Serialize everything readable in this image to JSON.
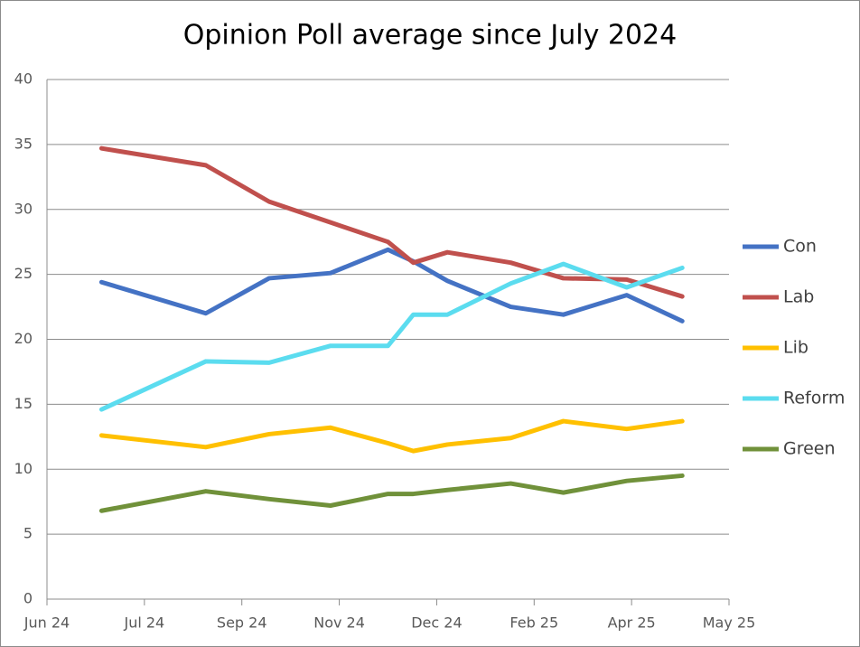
{
  "chart_data": {
    "type": "line",
    "title": "Opinion Poll average since July 2024",
    "x": [
      0.56,
      1.63,
      2.28,
      2.91,
      3.5,
      3.76,
      4.11,
      4.76,
      5.3,
      5.95,
      6.52
    ],
    "xlim": [
      0,
      7
    ],
    "xticks": [
      {
        "value": 0,
        "label": "Jun 24"
      },
      {
        "value": 1,
        "label": "Jul 24"
      },
      {
        "value": 2,
        "label": "Sep 24"
      },
      {
        "value": 3,
        "label": "Nov 24"
      },
      {
        "value": 4,
        "label": "Dec 24"
      },
      {
        "value": 5,
        "label": "Feb 25"
      },
      {
        "value": 6,
        "label": "Apr 25"
      },
      {
        "value": 7,
        "label": "May 25"
      }
    ],
    "ylim": [
      0,
      40
    ],
    "yticks": [
      0,
      5,
      10,
      15,
      20,
      25,
      30,
      35,
      40
    ],
    "grid": true,
    "legend": "right",
    "series": [
      {
        "name": "Con",
        "color": "#4472c4",
        "values": [
          24.4,
          22.0,
          24.7,
          25.1,
          26.9,
          26.0,
          24.5,
          22.5,
          21.9,
          23.4,
          21.4
        ]
      },
      {
        "name": "Lab",
        "color": "#c0504d",
        "values": [
          34.7,
          33.4,
          30.6,
          29.0,
          27.5,
          25.9,
          26.7,
          25.9,
          24.7,
          24.6,
          23.3
        ]
      },
      {
        "name": "Lib",
        "color": "#ffc000",
        "values": [
          12.6,
          11.7,
          12.7,
          13.2,
          12.0,
          11.4,
          11.9,
          12.4,
          13.7,
          13.1,
          13.7
        ]
      },
      {
        "name": "Reform",
        "color": "#5bdcef",
        "values": [
          14.6,
          18.3,
          18.2,
          19.5,
          19.5,
          21.9,
          21.9,
          24.3,
          25.8,
          24.0,
          25.5
        ]
      },
      {
        "name": "Green",
        "color": "#70913a",
        "values": [
          6.8,
          8.3,
          7.7,
          7.2,
          8.1,
          8.1,
          8.4,
          8.9,
          8.2,
          9.1,
          9.5
        ]
      }
    ]
  }
}
